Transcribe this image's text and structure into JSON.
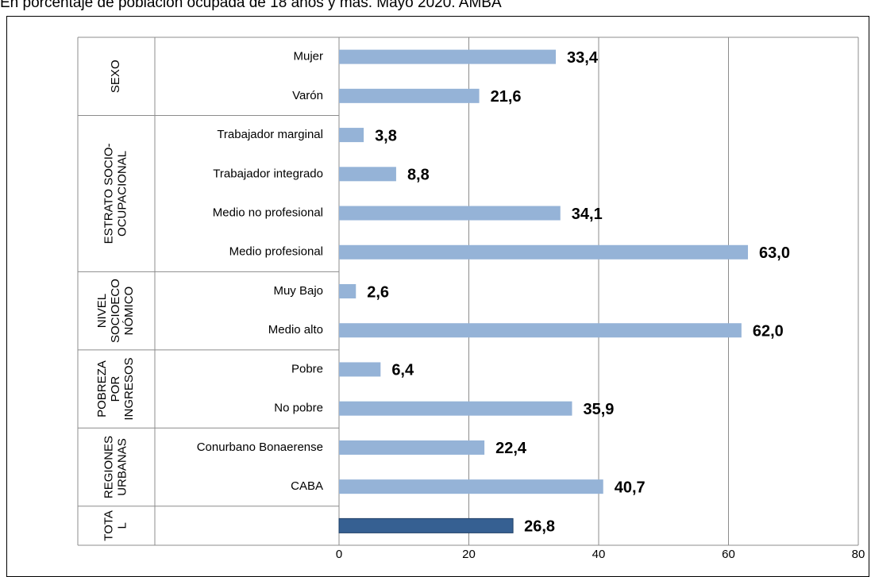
{
  "chart_data": {
    "type": "bar",
    "orientation": "horizontal",
    "title": "En porcentaje de población ocupada de 18 años y más. Mayo 2020. AMBA",
    "groups": [
      {
        "lines": [
          "SEXO"
        ],
        "categories": [
          "Mujer",
          "Varón"
        ],
        "values": [
          33.4,
          21.6
        ],
        "value_labels": [
          "33,4",
          "21,6"
        ],
        "color": "#95b3d7"
      },
      {
        "lines": [
          "ESTRATO SOCIO-",
          "OCUPACIONAL"
        ],
        "categories": [
          "Trabajador marginal",
          "Trabajador integrado",
          "Medio no profesional",
          "Medio profesional"
        ],
        "values": [
          3.8,
          8.8,
          34.1,
          63.0
        ],
        "value_labels": [
          "3,8",
          "8,8",
          "34,1",
          "63,0"
        ],
        "color": "#95b3d7"
      },
      {
        "lines": [
          "NIVEL",
          "SOCIOECO",
          "NÓMICO"
        ],
        "categories": [
          "Muy Bajo",
          "Medio alto"
        ],
        "values": [
          2.6,
          62.0
        ],
        "value_labels": [
          "2,6",
          "62,0"
        ],
        "color": "#95b3d7"
      },
      {
        "lines": [
          "POBREZA",
          "POR",
          "INGRESOS"
        ],
        "categories": [
          "Pobre",
          "No pobre"
        ],
        "values": [
          6.4,
          35.9
        ],
        "value_labels": [
          "6,4",
          "35,9"
        ],
        "color": "#95b3d7"
      },
      {
        "lines": [
          "REGIONES",
          "URBANAS"
        ],
        "categories": [
          "Conurbano Bonaerense",
          "CABA"
        ],
        "values": [
          22.4,
          40.7
        ],
        "value_labels": [
          "22,4",
          "40,7"
        ],
        "color": "#95b3d7"
      },
      {
        "lines": [
          "TOTA",
          "L"
        ],
        "categories": [
          null
        ],
        "values": [
          26.8
        ],
        "value_labels": [
          "26,8"
        ],
        "color": "#366092"
      }
    ],
    "xlim": [
      0,
      80
    ],
    "xticks": [
      0,
      20,
      40,
      60,
      80
    ],
    "grid": true
  }
}
